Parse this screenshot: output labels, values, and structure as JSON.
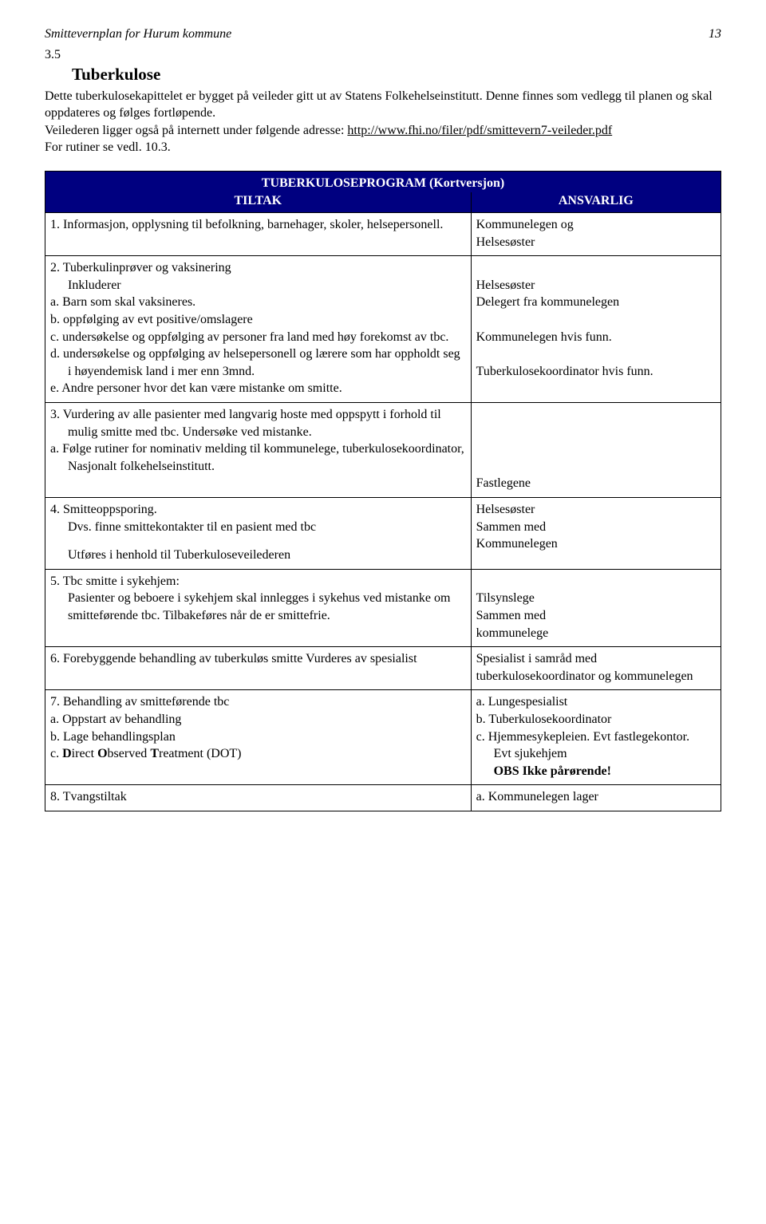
{
  "header": {
    "doc_title": "Smittevernplan for Hurum kommune",
    "page_number": "13"
  },
  "section": {
    "number": "3.5",
    "title": "Tuberkulose",
    "intro_1": "Dette tuberkulosekapittelet er bygget på veileder gitt ut av Statens Folkehelseinstitutt. Denne finnes som vedlegg til planen og skal oppdateres og følges fortløpende.",
    "intro_2_prefix": "Veilederen ligger også på internett under følgende adresse: ",
    "intro_link": "http://www.fhi.no/filer/pdf/smittevern7-veileder.pdf",
    "intro_3": "For rutiner se vedl. 10.3."
  },
  "table": {
    "title": "TUBERKULOSEPROGRAM (Kortversjon)",
    "col_left": "TILTAK",
    "col_right": "ANSVARLIG",
    "rows": [
      {
        "left": {
          "num": "1.",
          "text": "Informasjon, opplysning til befolkning, barnehager, skoler, helsepersonell."
        },
        "right": {
          "lines": [
            "Kommunelegen og",
            "Helsesøster"
          ]
        }
      },
      {
        "left": {
          "num": "2.",
          "head": "Tuberkulinprøver og vaksinering",
          "sub": "Inkluderer",
          "items": [
            {
              "m": "a.",
              "t": "Barn som skal vaksineres."
            },
            {
              "m": "b.",
              "t": "oppfølging av evt positive/omslagere"
            },
            {
              "m": "c.",
              "t": "undersøkelse og oppfølging av personer fra land med høy forekomst av tbc."
            },
            {
              "m": "d.",
              "t": "undersøkelse og oppfølging av helsepersonell og lærere som har oppholdt seg i høyendemisk land i mer enn 3mnd."
            },
            {
              "m": "e.",
              "t": "Andre personer hvor det kan være mistanke om smitte."
            }
          ]
        },
        "right": {
          "blocks": [
            {
              "t": ""
            },
            {
              "t": "Helsesøster"
            },
            {
              "t": "Delegert fra kommunelegen"
            },
            {
              "t": ""
            },
            {
              "t": "Kommunelegen hvis funn."
            },
            {
              "t": ""
            },
            {
              "t": "Tuberkulosekoordinator hvis funn."
            }
          ]
        }
      },
      {
        "left": {
          "num": "3.",
          "head": "Vurdering av alle pasienter med langvarig hoste med oppspytt i forhold til mulig smitte med tbc. Undersøke ved mistanke.",
          "items": [
            {
              "m": "a.",
              "t": "Følge rutiner for nominativ melding til kommunelege, tuberkulosekoordinator, Nasjonalt folkehelseinstitutt."
            }
          ]
        },
        "right": {
          "blocks": [
            {
              "t": ""
            },
            {
              "t": ""
            },
            {
              "t": ""
            },
            {
              "t": ""
            },
            {
              "t": "Fastlegene"
            }
          ]
        }
      },
      {
        "left": {
          "num": "4.",
          "head": "Smitteoppsporing.",
          "sub": "Dvs. finne smittekontakter til en pasient med tbc",
          "footer": "Utføres i henhold til Tuberkuloseveilederen"
        },
        "right": {
          "blocks": [
            {
              "t": "Helsesøster"
            },
            {
              "t": "Sammen med"
            },
            {
              "t": "Kommunelegen"
            }
          ]
        }
      },
      {
        "left": {
          "num": "5.",
          "head": "Tbc smitte i sykehjem:",
          "sub": "Pasienter og beboere i sykehjem skal innlegges i sykehus ved mistanke om smitteførende tbc. Tilbakeføres når de er smittefrie."
        },
        "right": {
          "blocks": [
            {
              "t": ""
            },
            {
              "t": "Tilsynslege"
            },
            {
              "t": "Sammen med"
            },
            {
              "t": "kommunelege"
            }
          ]
        }
      },
      {
        "left": {
          "num": "6.",
          "head": "Forebyggende behandling av tuberkuløs smitte Vurderes av spesialist"
        },
        "right": {
          "blocks": [
            {
              "t": "Spesialist i samråd med tuberkulosekoordinator og kommunelegen"
            }
          ]
        }
      },
      {
        "left": {
          "num": "7.",
          "head": "Behandling av smitteførende tbc",
          "items": [
            {
              "m": "a.",
              "t": "Oppstart av behandling"
            },
            {
              "m": "b.",
              "t": " Lage behandlingsplan"
            },
            {
              "m": "c.",
              "t_html": "<span class=\"bold\">D</span>irect <span class=\"bold\">O</span>bserved <span class=\"bold\">T</span>reatment (DOT)"
            }
          ]
        },
        "right": {
          "items": [
            {
              "m": "a.",
              "t": "Lungespesialist"
            },
            {
              "m": "b.",
              "t": "Tuberkulosekoordinator"
            },
            {
              "m": "c.",
              "t": "Hjemmesykepleien. Evt fastlegekontor."
            }
          ],
          "tail": [
            "Evt sjukehjem",
            {
              "bold": true,
              "t": "OBS Ikke pårørende!"
            }
          ]
        }
      },
      {
        "left": {
          "num": "8.",
          "head": "Tvangstiltak"
        },
        "right": {
          "items": [
            {
              "m": "a.",
              "t": "Kommunelegen lager"
            }
          ]
        }
      }
    ]
  }
}
